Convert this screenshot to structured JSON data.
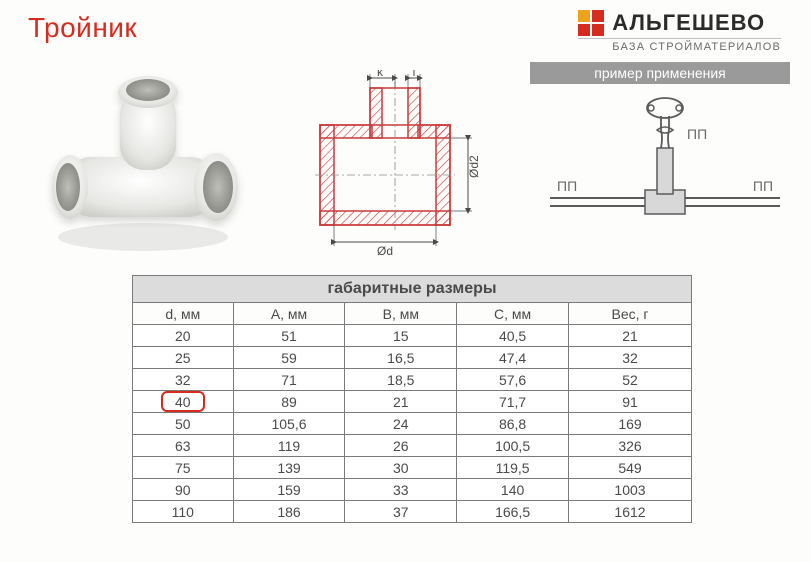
{
  "title": "Тройник",
  "brand": {
    "name": "АЛЬГЕШЕВО",
    "subtitle": "БАЗА СТРОЙМАТЕРИАЛОВ",
    "squares": [
      "#f0a21f",
      "#d62b1f",
      "#d62b1f",
      "#d62b1f"
    ]
  },
  "example_bar": "пример применения",
  "app_labels": {
    "pp_left": "ПП",
    "pp_right": "ПП",
    "pp_up": "ПП"
  },
  "dim_labels": {
    "k": "k",
    "l": "l",
    "d": "Ød",
    "d2": "Ød2"
  },
  "table": {
    "title": "габаритные размеры",
    "columns": [
      "d, мм",
      "A, мм",
      "B, мм",
      "C, мм",
      "Вес, г"
    ],
    "col_widths": [
      "18%",
      "20%",
      "20%",
      "20%",
      "22%"
    ],
    "rows": [
      [
        "20",
        "51",
        "15",
        "40,5",
        "21"
      ],
      [
        "25",
        "59",
        "16,5",
        "47,4",
        "32"
      ],
      [
        "32",
        "71",
        "18,5",
        "57,6",
        "52"
      ],
      [
        "40",
        "89",
        "21",
        "71,7",
        "91"
      ],
      [
        "50",
        "105,6",
        "24",
        "86,8",
        "169"
      ],
      [
        "63",
        "119",
        "26",
        "100,5",
        "326"
      ],
      [
        "75",
        "139",
        "30",
        "119,5",
        "549"
      ],
      [
        "90",
        "159",
        "33",
        "140",
        "1003"
      ],
      [
        "110",
        "186",
        "37",
        "166,5",
        "1612"
      ]
    ],
    "highlight": {
      "row": 3,
      "col": 0
    }
  },
  "colors": {
    "accent_red": "#d62b1f",
    "gray_bar": "#9a9a9a",
    "table_border": "#7a7a7a",
    "text_gray": "#4a4a4a",
    "draw_red": "#c93a3a",
    "draw_gray": "#5a5a5a"
  }
}
